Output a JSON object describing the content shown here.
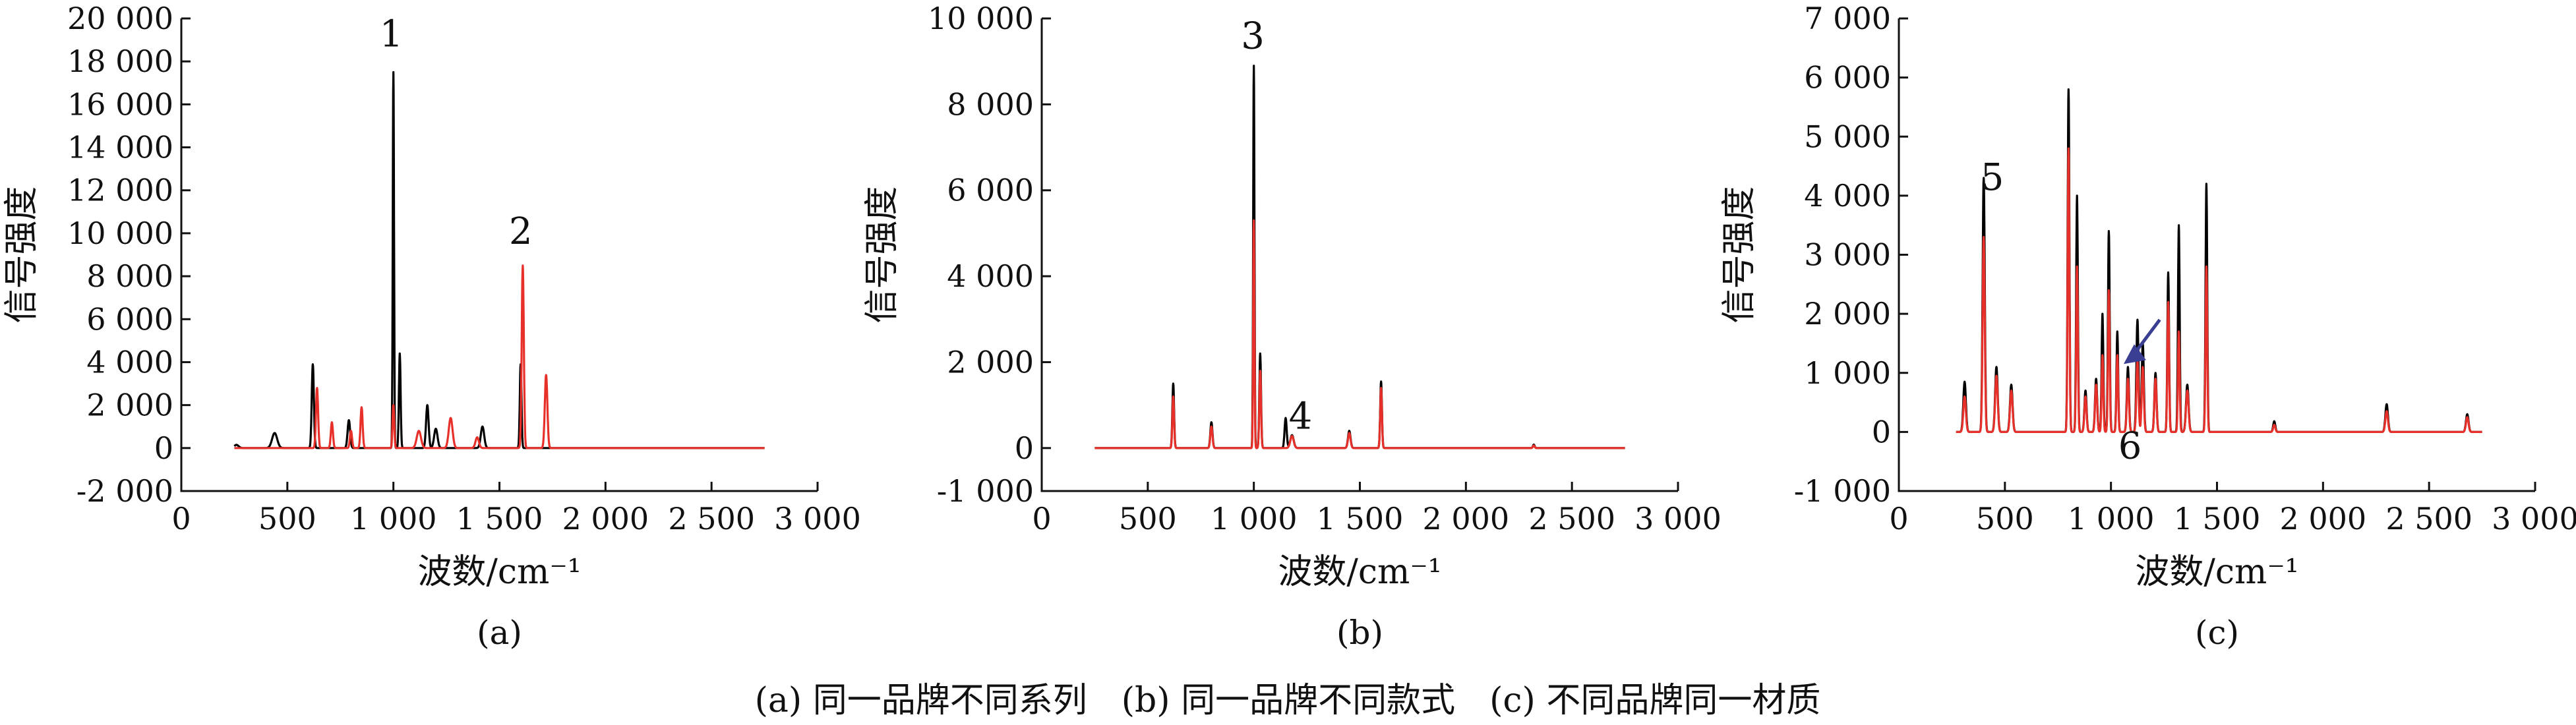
{
  "caption": "(a) 同一品牌不同系列　(b) 同一品牌不同款式　(c) 不同品牌同一材质",
  "colors": {
    "spectrum_1": "#000000",
    "spectrum_2": "#e8302a",
    "annotation_arrow": "#3a3f93"
  },
  "chart_data": [
    {
      "type": "line",
      "panel_label": "(a)",
      "xlabel": "波数/cm⁻¹",
      "ylabel": "信号强度",
      "xlim": [
        0,
        3000
      ],
      "ylim": [
        -2000,
        20000
      ],
      "x_ticks": [
        0,
        500,
        1000,
        1500,
        2000,
        2500,
        3000
      ],
      "x_tick_labels": [
        "0",
        "500",
        "1 000",
        "1 500",
        "2 000",
        "2 500",
        "3 000"
      ],
      "y_ticks": [
        -2000,
        0,
        2000,
        4000,
        6000,
        8000,
        10000,
        12000,
        14000,
        16000,
        18000,
        20000
      ],
      "y_tick_labels": [
        "-2 000",
        "0",
        "2 000",
        "4 000",
        "6 000",
        "8 000",
        "10 000",
        "12 000",
        "14 000",
        "16 000",
        "18 000",
        "20 000"
      ],
      "x_range": [
        250,
        2750
      ],
      "series": [
        {
          "color": "#000000",
          "peaks": [
            [
              260,
              150,
              10
            ],
            [
              440,
              700,
              12
            ],
            [
              620,
              3900,
              5
            ],
            [
              790,
              1300,
              6
            ],
            [
              1000,
              17500,
              3
            ],
            [
              1030,
              4400,
              4
            ],
            [
              1160,
              2000,
              6
            ],
            [
              1200,
              900,
              8
            ],
            [
              1420,
              1000,
              8
            ],
            [
              1600,
              3900,
              4
            ]
          ]
        },
        {
          "color": "#e8302a",
          "peaks": [
            [
              640,
              2800,
              5
            ],
            [
              710,
              1200,
              5
            ],
            [
              800,
              800,
              5
            ],
            [
              850,
              1900,
              5
            ],
            [
              1000,
              2000,
              4
            ],
            [
              1120,
              800,
              10
            ],
            [
              1270,
              1400,
              9
            ],
            [
              1395,
              500,
              8
            ],
            [
              1610,
              8500,
              5
            ],
            [
              1720,
              3400,
              6
            ]
          ]
        }
      ],
      "annotations": [
        {
          "text": "1",
          "x": 990,
          "y": 18700
        },
        {
          "text": "2",
          "x": 1600,
          "y": 9500
        }
      ]
    },
    {
      "type": "line",
      "panel_label": "(b)",
      "xlabel": "波数/cm⁻¹",
      "ylabel": "信号强度",
      "xlim": [
        0,
        3000
      ],
      "ylim": [
        -1000,
        10000
      ],
      "x_ticks": [
        0,
        500,
        1000,
        1500,
        2000,
        2500,
        3000
      ],
      "x_tick_labels": [
        "0",
        "500",
        "1 000",
        "1 500",
        "2 000",
        "2 500",
        "3 000"
      ],
      "y_ticks": [
        -1000,
        0,
        2000,
        4000,
        6000,
        8000,
        10000
      ],
      "y_tick_labels": [
        "-1 000",
        "0",
        "2 000",
        "4 000",
        "6 000",
        "8 000",
        "10 000"
      ],
      "x_range": [
        250,
        2750
      ],
      "series": [
        {
          "color": "#000000",
          "peaks": [
            [
              620,
              1500,
              4
            ],
            [
              800,
              600,
              5
            ],
            [
              1000,
              8900,
              3
            ],
            [
              1030,
              2200,
              4
            ],
            [
              1150,
              700,
              5
            ],
            [
              1180,
              300,
              8
            ],
            [
              1450,
              400,
              6
            ],
            [
              1600,
              1550,
              4
            ],
            [
              2320,
              80,
              4
            ]
          ]
        },
        {
          "color": "#e8302a",
          "peaks": [
            [
              620,
              1200,
              4
            ],
            [
              800,
              500,
              5
            ],
            [
              1000,
              5300,
              3
            ],
            [
              1030,
              1800,
              4
            ],
            [
              1180,
              280,
              8
            ],
            [
              1450,
              350,
              6
            ],
            [
              1600,
              1400,
              4
            ],
            [
              2320,
              60,
              4
            ]
          ]
        }
      ],
      "annotations": [
        {
          "text": "3",
          "x": 995,
          "y": 9300
        },
        {
          "text": "4",
          "x": 1220,
          "y": 450
        }
      ]
    },
    {
      "type": "line",
      "panel_label": "(c)",
      "xlabel": "波数/cm⁻¹",
      "ylabel": "信号强度",
      "xlim": [
        0,
        3000
      ],
      "ylim": [
        -1000,
        7000
      ],
      "x_ticks": [
        0,
        500,
        1000,
        1500,
        2000,
        2500,
        3000
      ],
      "x_tick_labels": [
        "0",
        "500",
        "1 000",
        "1 500",
        "2 000",
        "2 500",
        "3 000"
      ],
      "y_ticks": [
        -1000,
        0,
        1000,
        2000,
        3000,
        4000,
        5000,
        6000,
        7000
      ],
      "y_tick_labels": [
        "-1 000",
        "0",
        "1 000",
        "2 000",
        "3 000",
        "4 000",
        "5 000",
        "6 000",
        "7 000"
      ],
      "x_range": [
        270,
        2750
      ],
      "series": [
        {
          "color": "#000000",
          "peaks": [
            [
              310,
              850,
              6
            ],
            [
              400,
              4300,
              5
            ],
            [
              460,
              1100,
              6
            ],
            [
              530,
              800,
              6
            ],
            [
              800,
              5800,
              4
            ],
            [
              840,
              4000,
              4
            ],
            [
              880,
              700,
              5
            ],
            [
              930,
              900,
              5
            ],
            [
              960,
              2000,
              4
            ],
            [
              990,
              3400,
              4
            ],
            [
              1030,
              1700,
              4
            ],
            [
              1080,
              1100,
              5
            ],
            [
              1125,
              1900,
              5
            ],
            [
              1150,
              1500,
              5
            ],
            [
              1210,
              1000,
              5
            ],
            [
              1270,
              2700,
              4
            ],
            [
              1320,
              3500,
              4
            ],
            [
              1360,
              800,
              6
            ],
            [
              1450,
              4200,
              4
            ],
            [
              1770,
              180,
              5
            ],
            [
              2300,
              470,
              6
            ],
            [
              2680,
              300,
              6
            ]
          ]
        },
        {
          "color": "#e8302a",
          "peaks": [
            [
              310,
              600,
              6
            ],
            [
              400,
              3300,
              5
            ],
            [
              460,
              950,
              6
            ],
            [
              530,
              700,
              6
            ],
            [
              800,
              4800,
              4
            ],
            [
              840,
              2800,
              4
            ],
            [
              880,
              600,
              5
            ],
            [
              930,
              800,
              5
            ],
            [
              960,
              1300,
              4
            ],
            [
              990,
              2400,
              4
            ],
            [
              1030,
              1300,
              4
            ],
            [
              1080,
              900,
              5
            ],
            [
              1125,
              1200,
              5
            ],
            [
              1150,
              1100,
              5
            ],
            [
              1210,
              900,
              5
            ],
            [
              1270,
              2200,
              4
            ],
            [
              1320,
              1700,
              4
            ],
            [
              1360,
              700,
              6
            ],
            [
              1450,
              2800,
              4
            ],
            [
              1770,
              120,
              5
            ],
            [
              2300,
              350,
              6
            ],
            [
              2680,
              250,
              6
            ]
          ]
        }
      ],
      "annotations": [
        {
          "text": "5",
          "x": 440,
          "y": 4100
        },
        {
          "text": "6",
          "x": 1090,
          "y": -450
        }
      ]
    }
  ]
}
